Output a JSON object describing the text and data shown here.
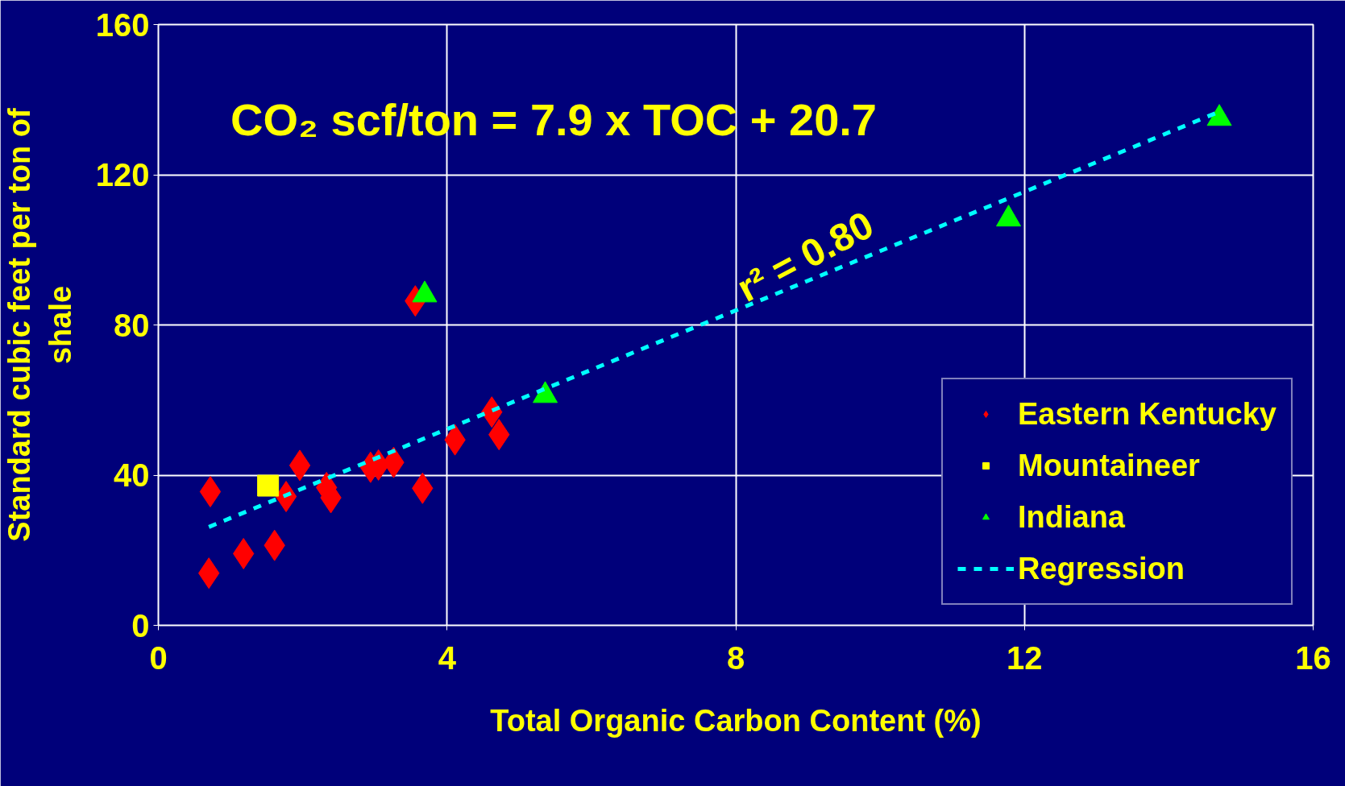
{
  "chart_data": {
    "type": "scatter",
    "xlabel": "Total Organic Carbon Content (%)",
    "ylabel": "Standard cubic feet per ton of shale",
    "annotations": [
      "CO₂ scf/ton = 7.9 x TOC + 20.7",
      "r² = 0.80"
    ],
    "xlim": [
      0,
      16
    ],
    "xticks": [
      0,
      4,
      8,
      12,
      16
    ],
    "ylim": [
      0,
      160
    ],
    "yticks": [
      0,
      40,
      80,
      120,
      160
    ],
    "grid": true,
    "legend": "bottom right",
    "series": [
      {
        "name": "Eastern Kentucky",
        "color": "#ff0000",
        "marker": "diamond",
        "x": [
          0.72,
          0.7,
          1.18,
          1.61,
          1.77,
          1.96,
          2.33,
          2.39,
          2.94,
          3.05,
          3.26,
          3.66,
          3.56,
          4.11,
          4.62,
          4.72
        ],
        "values": [
          35.6,
          13.9,
          19.1,
          21.3,
          34.3,
          42.6,
          36.7,
          34.0,
          42.1,
          42.7,
          43.4,
          36.5,
          86.4,
          49.4,
          56.8,
          50.8
        ]
      },
      {
        "name": "Mountaineer",
        "color": "#ffff00",
        "marker": "square",
        "x": [
          1.52
        ],
        "values": [
          37.2
        ]
      },
      {
        "name": "Indiana",
        "color": "#00ff00",
        "marker": "triangle",
        "x": [
          3.69,
          5.36,
          11.78,
          14.7
        ],
        "values": [
          88,
          61.2,
          108.2,
          135.0
        ]
      },
      {
        "name": "Regression",
        "type": "line",
        "color": "#00ffff",
        "line_style": "dashed",
        "x": [
          0.7,
          14.7
        ],
        "values": [
          26.2,
          136.8
        ]
      }
    ]
  }
}
